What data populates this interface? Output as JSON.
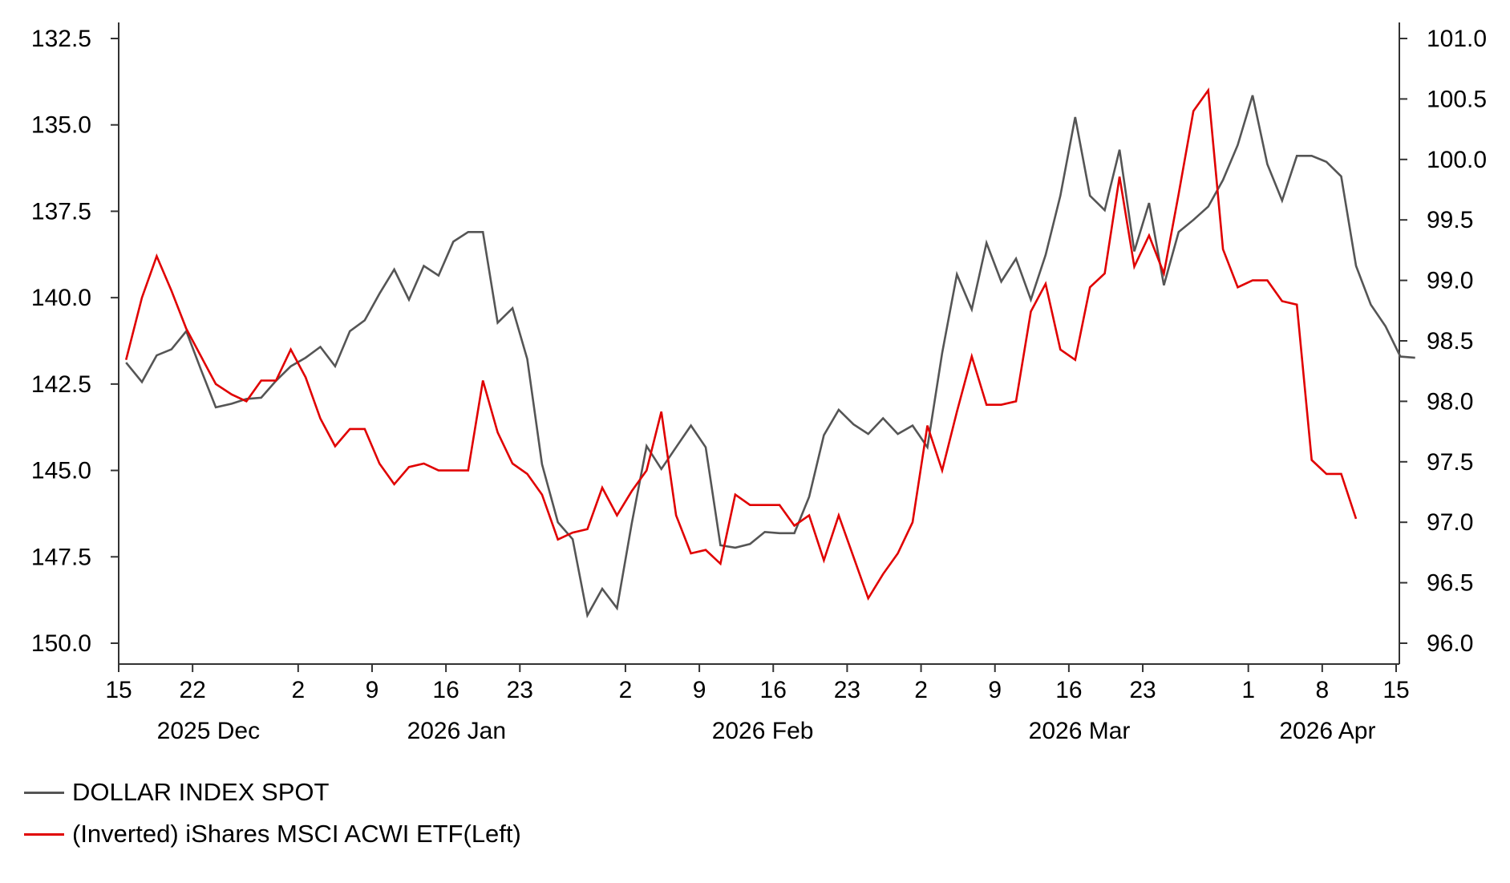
{
  "chart_data": {
    "type": "line",
    "title": "",
    "left_axis": {
      "label": "(Inverted) iShares MSCI ACWI ETF",
      "range": [
        132.5,
        150.0
      ],
      "inverted": true,
      "ticks": [
        "132.5",
        "135.0",
        "137.5",
        "140.0",
        "142.5",
        "145.0",
        "147.5",
        "150.0"
      ],
      "tick_values": [
        132.5,
        135.0,
        137.5,
        140.0,
        142.5,
        145.0,
        147.5,
        150.0
      ]
    },
    "right_axis": {
      "label": "DOLLAR INDEX SPOT",
      "range": [
        96.0,
        101.0
      ],
      "ticks": [
        "101.0",
        "100.5",
        "100.0",
        "99.5",
        "99.0",
        "98.5",
        "98.0",
        "97.5",
        "97.0",
        "96.5",
        "96.0"
      ],
      "tick_values": [
        101.0,
        100.5,
        100.0,
        99.5,
        99.0,
        98.5,
        98.0,
        97.5,
        97.0,
        96.5,
        96.0
      ]
    },
    "x_axis": {
      "day_range": [
        0,
        121
      ],
      "day_zero": "2025-12-15",
      "day_ticks": [
        {
          "day": 0,
          "label": "15"
        },
        {
          "day": 7,
          "label": "22"
        },
        {
          "day": 17,
          "label": "2"
        },
        {
          "day": 24,
          "label": "9"
        },
        {
          "day": 31,
          "label": "16"
        },
        {
          "day": 38,
          "label": "23"
        },
        {
          "day": 48,
          "label": "2"
        },
        {
          "day": 55,
          "label": "9"
        },
        {
          "day": 62,
          "label": "16"
        },
        {
          "day": 69,
          "label": "23"
        },
        {
          "day": 76,
          "label": "2"
        },
        {
          "day": 83,
          "label": "9"
        },
        {
          "day": 90,
          "label": "16"
        },
        {
          "day": 97,
          "label": "23"
        },
        {
          "day": 107,
          "label": "1"
        },
        {
          "day": 114,
          "label": "8"
        },
        {
          "day": 121,
          "label": "15"
        }
      ],
      "month_labels": [
        {
          "day": 8.5,
          "label": "2025 Dec"
        },
        {
          "day": 32,
          "label": "2026 Jan"
        },
        {
          "day": 61,
          "label": "2026 Feb"
        },
        {
          "day": 91,
          "label": "2026 Mar"
        },
        {
          "day": 114.5,
          "label": "2026 Apr"
        }
      ]
    },
    "series": [
      {
        "name": "DOLLAR INDEX SPOT",
        "axis": "right",
        "color": "#555555",
        "points": [
          [
            0.7,
            98.32
          ],
          [
            2.2,
            98.16
          ],
          [
            3.6,
            98.38
          ],
          [
            5.0,
            98.43
          ],
          [
            6.4,
            98.58
          ],
          [
            7.8,
            98.26
          ],
          [
            9.2,
            97.95
          ],
          [
            10.7,
            97.98
          ],
          [
            12.1,
            98.02
          ],
          [
            13.5,
            98.03
          ],
          [
            14.9,
            98.17
          ],
          [
            16.3,
            98.29
          ],
          [
            17.7,
            98.36
          ],
          [
            19.1,
            98.45
          ],
          [
            20.5,
            98.29
          ],
          [
            21.9,
            98.58
          ],
          [
            23.3,
            98.67
          ],
          [
            24.7,
            98.89
          ],
          [
            26.1,
            99.09
          ],
          [
            27.5,
            98.84
          ],
          [
            28.9,
            99.12
          ],
          [
            30.3,
            99.04
          ],
          [
            31.7,
            99.32
          ],
          [
            33.1,
            99.4
          ],
          [
            34.5,
            99.4
          ],
          [
            35.9,
            98.65
          ],
          [
            37.3,
            98.77
          ],
          [
            38.7,
            98.35
          ],
          [
            40.1,
            97.48
          ],
          [
            41.6,
            97.0
          ],
          [
            43.0,
            96.86
          ],
          [
            44.4,
            96.23
          ],
          [
            45.8,
            96.45
          ],
          [
            47.2,
            96.29
          ],
          [
            48.6,
            96.99
          ],
          [
            50.0,
            97.63
          ],
          [
            51.4,
            97.44
          ],
          [
            52.8,
            97.62
          ],
          [
            54.2,
            97.8
          ],
          [
            55.6,
            97.62
          ],
          [
            57.0,
            96.81
          ],
          [
            58.4,
            96.79
          ],
          [
            59.8,
            96.82
          ],
          [
            61.2,
            96.92
          ],
          [
            62.6,
            96.91
          ],
          [
            64.0,
            96.91
          ],
          [
            65.4,
            97.21
          ],
          [
            66.8,
            97.72
          ],
          [
            68.2,
            97.93
          ],
          [
            69.6,
            97.81
          ],
          [
            71.0,
            97.73
          ],
          [
            72.4,
            97.86
          ],
          [
            73.8,
            97.73
          ],
          [
            75.2,
            97.8
          ],
          [
            76.6,
            97.62
          ],
          [
            78.0,
            98.4
          ],
          [
            79.4,
            99.05
          ],
          [
            80.8,
            98.76
          ],
          [
            82.2,
            99.31
          ],
          [
            83.6,
            98.99
          ],
          [
            85.0,
            99.18
          ],
          [
            86.4,
            98.84
          ],
          [
            87.8,
            99.21
          ],
          [
            89.2,
            99.7
          ],
          [
            90.6,
            100.35
          ],
          [
            92.0,
            99.7
          ],
          [
            93.4,
            99.58
          ],
          [
            94.8,
            100.08
          ],
          [
            96.2,
            99.24
          ],
          [
            97.6,
            99.64
          ],
          [
            99.0,
            98.96
          ],
          [
            100.4,
            99.4
          ],
          [
            101.8,
            99.5
          ],
          [
            103.2,
            99.61
          ],
          [
            104.6,
            99.83
          ],
          [
            106.0,
            100.12
          ],
          [
            107.4,
            100.53
          ],
          [
            108.8,
            99.96
          ],
          [
            110.2,
            99.66
          ],
          [
            111.6,
            100.03
          ],
          [
            113.0,
            100.03
          ],
          [
            114.4,
            99.98
          ],
          [
            115.8,
            99.86
          ],
          [
            117.2,
            99.12
          ],
          [
            118.6,
            98.8
          ],
          [
            120.0,
            98.62
          ],
          [
            121.4,
            98.37
          ],
          [
            122.8,
            98.36
          ]
        ]
      },
      {
        "name": "(Inverted) iShares MSCI ACWI ETF(Left)",
        "axis": "left",
        "color": "#e00000",
        "points": [
          [
            0.7,
            141.8
          ],
          [
            2.2,
            140.0
          ],
          [
            3.6,
            138.8
          ],
          [
            5.0,
            139.8
          ],
          [
            6.4,
            140.9
          ],
          [
            7.8,
            141.7
          ],
          [
            9.2,
            142.5
          ],
          [
            10.7,
            142.8
          ],
          [
            12.1,
            143.0
          ],
          [
            13.5,
            142.4
          ],
          [
            14.9,
            142.4
          ],
          [
            16.3,
            141.5
          ],
          [
            17.7,
            142.3
          ],
          [
            19.1,
            143.5
          ],
          [
            20.5,
            144.3
          ],
          [
            21.9,
            143.8
          ],
          [
            23.3,
            143.8
          ],
          [
            24.7,
            144.8
          ],
          [
            26.1,
            145.4
          ],
          [
            27.5,
            144.9
          ],
          [
            28.9,
            144.8
          ],
          [
            30.3,
            145.0
          ],
          [
            31.7,
            145.0
          ],
          [
            33.1,
            145.0
          ],
          [
            34.5,
            142.4
          ],
          [
            35.9,
            143.9
          ],
          [
            37.3,
            144.8
          ],
          [
            38.7,
            145.1
          ],
          [
            40.1,
            145.7
          ],
          [
            41.6,
            147.0
          ],
          [
            43.0,
            146.8
          ],
          [
            44.4,
            146.7
          ],
          [
            45.8,
            145.5
          ],
          [
            47.2,
            146.3
          ],
          [
            48.6,
            145.6
          ],
          [
            50.0,
            145.0
          ],
          [
            51.4,
            143.3
          ],
          [
            52.8,
            146.3
          ],
          [
            54.2,
            147.4
          ],
          [
            55.6,
            147.3
          ],
          [
            57.0,
            147.7
          ],
          [
            58.4,
            145.7
          ],
          [
            59.8,
            146.0
          ],
          [
            61.2,
            146.0
          ],
          [
            62.6,
            146.0
          ],
          [
            64.0,
            146.6
          ],
          [
            65.4,
            146.3
          ],
          [
            66.8,
            147.6
          ],
          [
            68.2,
            146.3
          ],
          [
            69.6,
            147.5
          ],
          [
            71.0,
            148.7
          ],
          [
            72.4,
            148.0
          ],
          [
            73.8,
            147.4
          ],
          [
            75.2,
            146.5
          ],
          [
            76.6,
            143.7
          ],
          [
            78.0,
            145.0
          ],
          [
            79.4,
            143.3
          ],
          [
            80.8,
            141.7
          ],
          [
            82.2,
            143.1
          ],
          [
            83.6,
            143.1
          ],
          [
            85.0,
            143.0
          ],
          [
            86.4,
            140.4
          ],
          [
            87.8,
            139.6
          ],
          [
            89.2,
            141.5
          ],
          [
            90.6,
            141.8
          ],
          [
            92.0,
            139.7
          ],
          [
            93.4,
            139.3
          ],
          [
            94.8,
            136.5
          ],
          [
            96.2,
            139.1
          ],
          [
            97.6,
            138.2
          ],
          [
            99.0,
            139.3
          ],
          [
            100.4,
            137.0
          ],
          [
            101.8,
            134.6
          ],
          [
            103.2,
            134.0
          ],
          [
            104.6,
            138.6
          ],
          [
            106.0,
            139.7
          ],
          [
            107.4,
            139.5
          ],
          [
            108.8,
            139.5
          ],
          [
            110.2,
            140.1
          ],
          [
            111.6,
            140.2
          ],
          [
            113.0,
            144.7
          ],
          [
            114.4,
            145.1
          ],
          [
            115.8,
            145.1
          ],
          [
            117.2,
            146.4
          ]
        ]
      }
    ]
  },
  "legend": {
    "items": [
      {
        "label": "DOLLAR INDEX SPOT",
        "color": "#555555"
      },
      {
        "label": "(Inverted) iShares MSCI ACWI ETF(Left)",
        "color": "#e00000"
      }
    ]
  }
}
